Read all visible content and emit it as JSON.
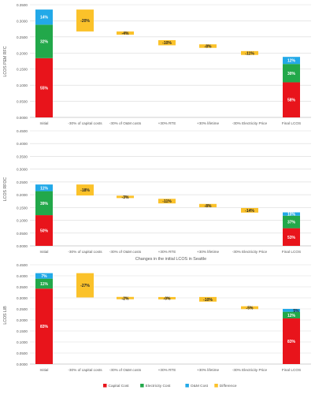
{
  "chart_data": [
    {
      "type": "bar",
      "ylabel": "LCOS PEM RFC",
      "xlabel": "",
      "ylim": [
        0,
        0.35
      ],
      "yticks": [
        "0.0000",
        "0.0500",
        "0.1000",
        "0.1500",
        "0.2000",
        "0.2500",
        "0.3000",
        "0.3500"
      ],
      "categories": [
        "Initial",
        "-30% of capital costs",
        "-30% of O&M costs",
        "+30% RTE",
        "+30% lifetime",
        "-30% Electricity Price",
        "Final LCOS"
      ],
      "initial": {
        "total": 0.335,
        "segments": [
          {
            "series": "Capital Cost",
            "value": 0.184,
            "label": "55%"
          },
          {
            "series": "Electricity Cost",
            "value": 0.104,
            "label": "32%"
          },
          {
            "series": "O&M Cost",
            "value": 0.047,
            "label": "14%"
          }
        ]
      },
      "differences": [
        {
          "start": 0.335,
          "end": 0.267,
          "label": "-20%"
        },
        {
          "start": 0.267,
          "end": 0.257,
          "label": "-4%"
        },
        {
          "start": 0.24,
          "end": 0.224,
          "label": "-10%"
        },
        {
          "start": 0.227,
          "end": 0.216,
          "label": "-8%"
        },
        {
          "start": 0.206,
          "end": 0.194,
          "label": "-11%"
        }
      ],
      "final": {
        "total": 0.188,
        "segments": [
          {
            "series": "Capital Cost",
            "value": 0.109,
            "label": "58%"
          },
          {
            "series": "Electricity Cost",
            "value": 0.057,
            "label": "30%"
          },
          {
            "series": "O&M Cost",
            "value": 0.022,
            "label": "12%"
          }
        ]
      }
    },
    {
      "type": "bar",
      "ylabel": "LCOS RFOC",
      "xlabel": "Changes in the initial LCOS in Seattle",
      "ylim": [
        0,
        0.45
      ],
      "yticks": [
        "0.0000",
        "0.0500",
        "0.1000",
        "0.1500",
        "0.2000",
        "0.2500",
        "0.3000",
        "0.3500",
        "0.4000",
        "0.4500"
      ],
      "categories": [
        "Initial",
        "-30% of capital costs",
        "-30% of O&M costs",
        "+30% RTE",
        "+30% lifetime",
        "-30% Electricity Price",
        "Final LCOS"
      ],
      "initial": {
        "total": 0.24,
        "segments": [
          {
            "series": "Capital Cost",
            "value": 0.12,
            "label": "50%"
          },
          {
            "series": "Electricity Cost",
            "value": 0.094,
            "label": "39%"
          },
          {
            "series": "O&M Cost",
            "value": 0.026,
            "label": "11%"
          }
        ]
      },
      "differences": [
        {
          "start": 0.24,
          "end": 0.197,
          "label": "-18%"
        },
        {
          "start": 0.195,
          "end": 0.188,
          "label": "-3%"
        },
        {
          "start": 0.184,
          "end": 0.166,
          "label": "-11%"
        },
        {
          "start": 0.164,
          "end": 0.151,
          "label": "-8%"
        },
        {
          "start": 0.148,
          "end": 0.13,
          "label": "-14%"
        }
      ],
      "final": {
        "total": 0.131,
        "segments": [
          {
            "series": "Capital Cost",
            "value": 0.069,
            "label": "53%"
          },
          {
            "series": "Electricity Cost",
            "value": 0.049,
            "label": "37%"
          },
          {
            "series": "O&M Cost",
            "value": 0.013,
            "label": "10%"
          }
        ]
      }
    },
    {
      "type": "bar",
      "ylabel": "LCOS LIB",
      "xlabel": "",
      "ylim": [
        0,
        0.45
      ],
      "yticks": [
        "0.0000",
        "0.0500",
        "0.1000",
        "0.1500",
        "0.2000",
        "0.2500",
        "0.3000",
        "0.3500",
        "0.4000",
        "0.4500"
      ],
      "categories": [
        "Initial",
        "-30% of capital costs",
        "-30% of O&M costs",
        "+30% RTE",
        "+30% lifetime",
        "-30% Electricity Price",
        "Final LCOS"
      ],
      "initial": {
        "total": 0.412,
        "segments": [
          {
            "series": "Capital Cost",
            "value": 0.342,
            "label": "83%"
          },
          {
            "series": "Electricity Cost",
            "value": 0.045,
            "label": "11%"
          },
          {
            "series": "O&M Cost",
            "value": 0.025,
            "label": "7%"
          }
        ]
      },
      "differences": [
        {
          "start": 0.412,
          "end": 0.302,
          "label": "-27%"
        },
        {
          "start": 0.303,
          "end": 0.295,
          "label": "-2%"
        },
        {
          "start": 0.3,
          "end": 0.297,
          "label": "-0%"
        },
        {
          "start": 0.304,
          "end": 0.283,
          "label": "-10%"
        },
        {
          "start": 0.262,
          "end": 0.249,
          "label": "-5%"
        }
      ],
      "final": {
        "total": 0.25,
        "segments": [
          {
            "series": "Capital Cost",
            "value": 0.207,
            "label": "83%"
          },
          {
            "series": "Electricity Cost",
            "value": 0.03,
            "label": "12%"
          },
          {
            "series": "O&M Cost",
            "value": 0.013,
            "label": "5%"
          }
        ]
      }
    }
  ],
  "legend": [
    {
      "name": "Capital Cost",
      "color": "#e8141b"
    },
    {
      "name": "Electricity Cost",
      "color": "#22a84a"
    },
    {
      "name": "O&M Cost",
      "color": "#22a9e8"
    },
    {
      "name": "Difference",
      "color": "#fbc22a"
    }
  ],
  "colors": {
    "capital": "#e8141b",
    "electricity": "#22a84a",
    "om": "#22a9e8",
    "difference": "#fbc22a",
    "grid": "#d9d9d9",
    "axis_text": "#595959"
  }
}
